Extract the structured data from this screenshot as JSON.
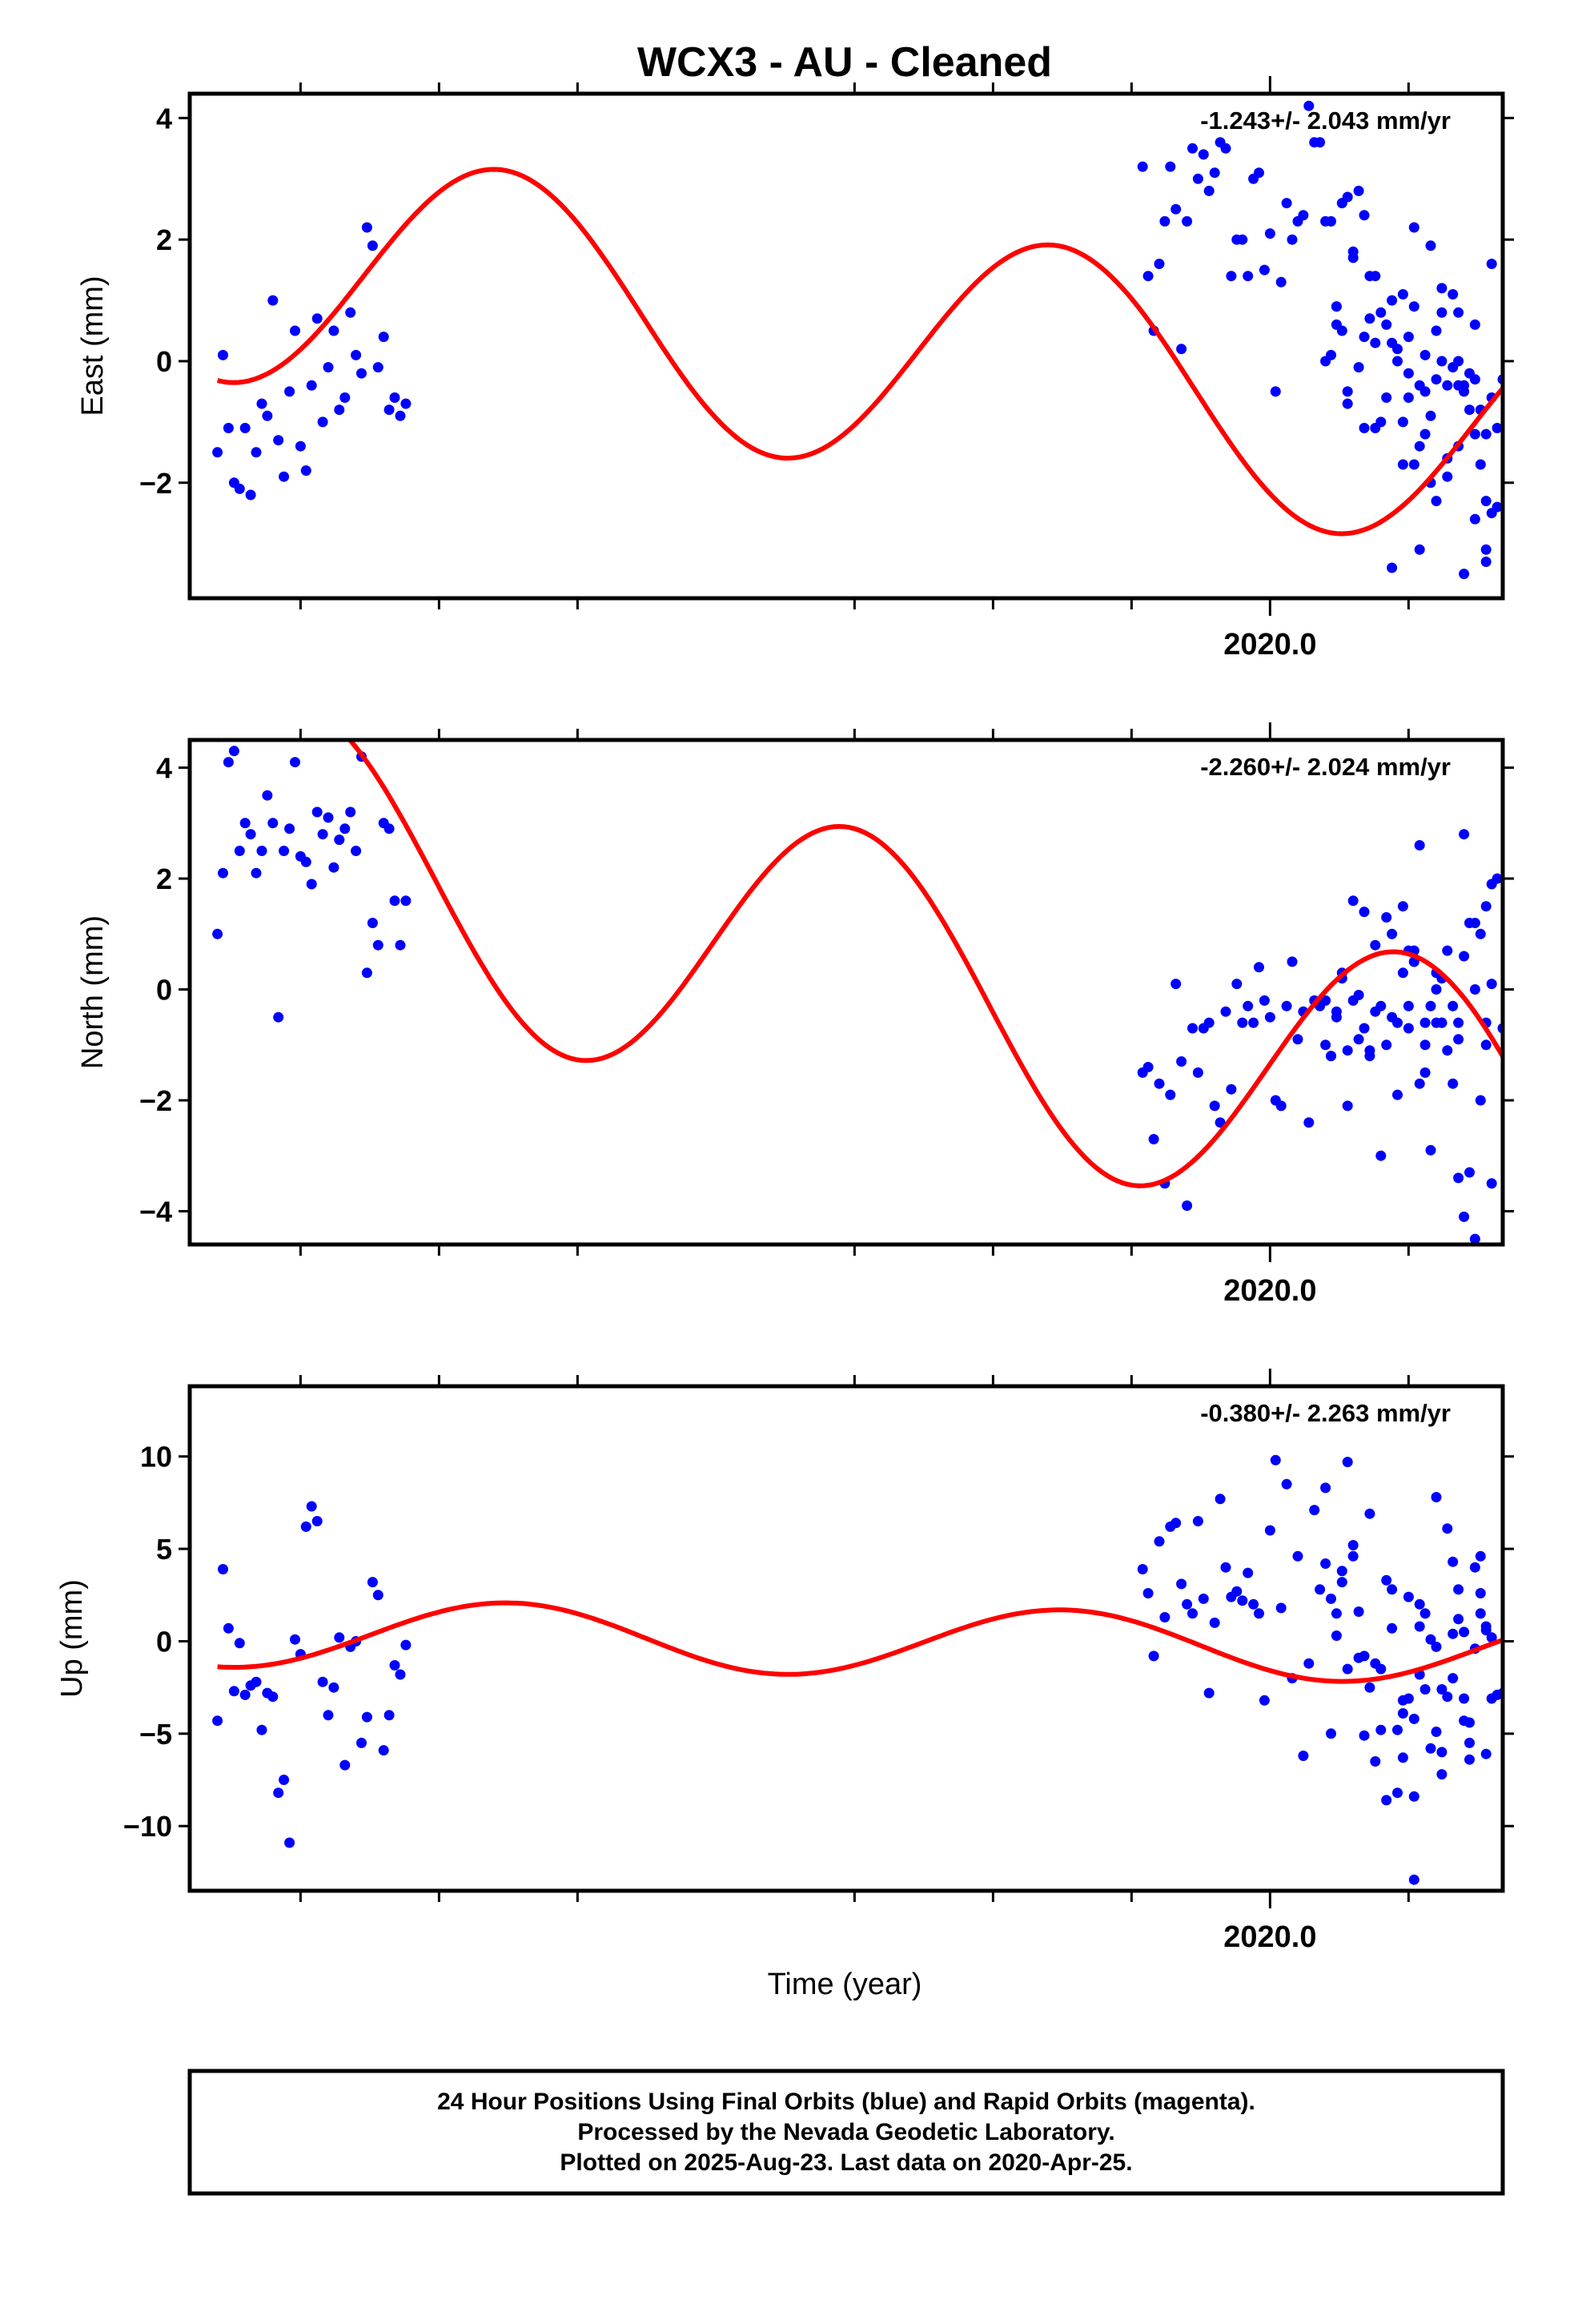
{
  "title": "WCX3  - AU - Cleaned",
  "x_axis_label": "Time (year)",
  "footer": {
    "line1": "24 Hour Positions Using Final Orbits (blue) and Rapid Orbits (magenta).",
    "line2": "Processed by the Nevada Geodetic Laboratory.",
    "line3": "Plotted on 2025-Aug-23. Last data on 2020-Apr-25."
  },
  "colors": {
    "points": "#0000ff",
    "fit": "#ff0000",
    "axes": "#000000"
  },
  "chart_data": [
    {
      "type": "scatter",
      "ylabel": "East (mm)",
      "rate": "-1.243+/- 2.043 mm/yr",
      "x_tick_label": "2020.0",
      "xlim": [
        2018.05,
        2020.42
      ],
      "ylim": [
        -3.9,
        4.4
      ],
      "yticks": [
        -2,
        0,
        2,
        4
      ],
      "grid": false,
      "series": [
        {
          "kind": "points",
          "x": [
            2018.1,
            2018.11,
            2018.12,
            2018.13,
            2018.14,
            2018.15,
            2018.16,
            2018.17,
            2018.18,
            2018.19,
            2018.2,
            2018.21,
            2018.22,
            2018.23,
            2018.24,
            2018.25,
            2018.26,
            2018.27,
            2018.28,
            2018.29,
            2018.3,
            2018.31,
            2018.32,
            2018.33,
            2018.34,
            2018.35,
            2018.36,
            2018.37,
            2018.38,
            2018.39,
            2018.4,
            2018.41,
            2018.42,
            2018.43,
            2018.44,
            2019.77,
            2019.78,
            2019.79,
            2019.8,
            2019.81,
            2019.82,
            2019.83,
            2019.84,
            2019.85,
            2019.86,
            2019.87,
            2019.88,
            2019.89,
            2019.9,
            2019.91,
            2019.92,
            2019.93,
            2019.94,
            2019.95,
            2019.96,
            2019.97,
            2019.98,
            2019.99,
            2020.0,
            2020.01,
            2020.02,
            2020.03,
            2020.04,
            2020.05,
            2020.06,
            2020.07,
            2020.08,
            2020.09,
            2020.1,
            2020.11,
            2020.12,
            2020.13,
            2020.14,
            2020.15,
            2020.16,
            2020.17,
            2020.18,
            2020.19,
            2020.2,
            2020.21,
            2020.22,
            2020.23,
            2020.24,
            2020.25,
            2020.26,
            2020.27,
            2020.28,
            2020.29,
            2020.3,
            2020.31,
            2020.32,
            2020.33,
            2020.34,
            2020.35,
            2020.36,
            2020.37,
            2020.38,
            2020.39,
            2020.4
          ],
          "y": [
            -1.5,
            0.1,
            -1.1,
            -2.0,
            -2.1,
            -1.1,
            -2.2,
            -1.5,
            -0.7,
            -0.9,
            1.0,
            -1.3,
            -1.9,
            -0.5,
            0.5,
            -1.4,
            -1.8,
            -0.4,
            0.7,
            -1.0,
            -0.1,
            0.5,
            -0.8,
            -0.6,
            0.8,
            0.1,
            -0.2,
            2.2,
            1.9,
            -0.1,
            0.4,
            -0.8,
            -0.6,
            -0.9,
            -0.7,
            3.2,
            1.4,
            0.5,
            1.6,
            2.3,
            3.2,
            2.5,
            0.2,
            2.3,
            3.5,
            3.0,
            3.4,
            2.8,
            3.1,
            3.6,
            3.5,
            1.4,
            2.0,
            2.0,
            1.4,
            3.0,
            3.1,
            1.5,
            2.1,
            -0.5,
            1.3,
            2.6,
            2.0,
            2.3,
            2.4,
            4.2,
            3.6,
            3.6,
            2.3,
            2.3,
            0.9,
            2.6,
            2.7,
            1.8,
            2.8,
            2.4,
            1.4,
            1.4,
            0.8,
            0.6,
            0.3,
            0.0,
            1.1,
            -0.2,
            0.9,
            -1.4,
            0.1,
            1.9,
            -0.3,
            0.8,
            -0.4,
            1.1,
            0.8,
            -0.4,
            -0.2,
            0.6,
            -0.8,
            -3.1,
            1.6
          ],
          "x2": [
            2020.1,
            2020.13,
            2020.16,
            2020.19,
            2020.22,
            2020.25,
            2020.28,
            2020.31,
            2020.34,
            2020.37,
            2020.4,
            2020.12,
            2020.15,
            2020.18,
            2020.21,
            2020.24,
            2020.27,
            2020.3,
            2020.33,
            2020.36,
            2020.39,
            2020.11,
            2020.14,
            2020.17,
            2020.2,
            2020.23,
            2020.26,
            2020.29,
            2020.32,
            2020.35,
            2020.38,
            2020.41,
            2020.14,
            2020.19,
            2020.24,
            2020.29,
            2020.34,
            2020.39,
            2020.12,
            2020.17,
            2020.22,
            2020.27,
            2020.32,
            2020.37,
            2020.41
          ],
          "y2": [
            0.0,
            0.5,
            -0.1,
            0.3,
            1.0,
            0.4,
            -0.5,
            1.2,
            0.0,
            -0.3,
            -0.6,
            0.6,
            1.7,
            0.7,
            -0.6,
            -1.0,
            -0.4,
            0.5,
            -0.1,
            -0.8,
            -1.2,
            0.1,
            -0.7,
            0.4,
            -1.0,
            0.2,
            -1.7,
            -0.9,
            -1.6,
            -0.5,
            -1.7,
            -2.4,
            -0.5,
            -1.1,
            -1.7,
            -2.0,
            -1.4,
            -2.3,
            0.9,
            -1.1,
            -3.4,
            -3.1,
            -1.9,
            -2.6,
            -1.1
          ],
          "x3": [
            2020.25,
            2020.28,
            2020.31,
            2020.34,
            2020.37,
            2020.4,
            2020.42,
            2020.26,
            2020.3,
            2020.35,
            2020.39
          ],
          "y3": [
            -0.6,
            -1.2,
            0.0,
            -0.4,
            -1.2,
            -2.5,
            -0.3,
            2.2,
            -2.3,
            -3.5,
            -3.3
          ]
        },
        {
          "kind": "fit",
          "name": "",
          "offset": 0.3,
          "trend": -1.243,
          "t0": 2019.25,
          "amp_a": -1.35,
          "amp_b": 1.55
        }
      ]
    },
    {
      "type": "scatter",
      "ylabel": "North (mm)",
      "rate": "-2.260+/- 2.024 mm/yr",
      "x_tick_label": "2020.0",
      "xlim": [
        2018.05,
        2020.42
      ],
      "ylim": [
        -4.6,
        4.5
      ],
      "yticks": [
        -4,
        -2,
        0,
        2,
        4
      ],
      "grid": false,
      "series": [
        {
          "kind": "points",
          "x": [
            2018.1,
            2018.11,
            2018.12,
            2018.13,
            2018.14,
            2018.15,
            2018.16,
            2018.17,
            2018.18,
            2018.19,
            2018.2,
            2018.21,
            2018.22,
            2018.23,
            2018.24,
            2018.25,
            2018.26,
            2018.27,
            2018.28,
            2018.29,
            2018.3,
            2018.31,
            2018.32,
            2018.33,
            2018.34,
            2018.35,
            2018.36,
            2018.37,
            2018.38,
            2018.39,
            2018.4,
            2018.41,
            2018.42,
            2018.43,
            2018.44,
            2019.77,
            2019.78,
            2019.79,
            2019.8,
            2019.81,
            2019.82,
            2019.83,
            2019.84,
            2019.85,
            2019.86,
            2019.87,
            2019.88,
            2019.89,
            2019.9,
            2019.91,
            2019.92,
            2019.93,
            2019.94,
            2019.95,
            2019.96,
            2019.97,
            2019.98,
            2019.99,
            2020.0,
            2020.01,
            2020.02,
            2020.03,
            2020.04,
            2020.05,
            2020.06,
            2020.07,
            2020.08,
            2020.09,
            2020.1,
            2020.11,
            2020.12,
            2020.13,
            2020.14,
            2020.15,
            2020.16,
            2020.17,
            2020.18,
            2020.19,
            2020.2,
            2020.21,
            2020.22,
            2020.23,
            2020.24,
            2020.25,
            2020.26,
            2020.27,
            2020.28,
            2020.29,
            2020.3,
            2020.31,
            2020.32,
            2020.33,
            2020.34,
            2020.35,
            2020.36,
            2020.37,
            2020.38,
            2020.39,
            2020.4
          ],
          "y": [
            1.0,
            2.1,
            4.1,
            4.3,
            2.5,
            3.0,
            2.8,
            2.1,
            2.5,
            3.5,
            3.0,
            -0.5,
            2.5,
            2.9,
            4.1,
            2.4,
            2.3,
            1.9,
            3.2,
            2.8,
            3.1,
            2.2,
            2.7,
            2.9,
            3.2,
            2.5,
            4.2,
            0.3,
            1.2,
            0.8,
            3.0,
            2.9,
            1.6,
            0.8,
            1.6,
            -1.5,
            -1.4,
            -2.7,
            -1.7,
            -3.5,
            -1.9,
            0.1,
            -1.3,
            -3.9,
            -0.7,
            -1.5,
            -0.7,
            -0.6,
            -2.1,
            -2.4,
            -0.4,
            -1.8,
            0.1,
            -0.6,
            -0.3,
            -0.6,
            0.4,
            -0.2,
            -0.5,
            -2.0,
            -2.1,
            -0.3,
            0.5,
            -0.9,
            -0.4,
            -2.4,
            -0.2,
            -0.3,
            -0.2,
            -1.2,
            -0.5,
            0.2,
            -1.1,
            -0.2,
            -0.1,
            -0.7,
            -1.1,
            -0.4,
            -3.0,
            -1.0,
            1.0,
            -1.9,
            1.5,
            -0.7,
            0.5,
            -1.7,
            -0.6,
            -2.9,
            0.3,
            -0.6,
            0.7,
            -0.3,
            -3.4,
            -4.1,
            -3.3,
            -4.5,
            -2.0,
            -1.0,
            -3.5
          ],
          "x2": [
            2020.1,
            2020.13,
            2020.16,
            2020.19,
            2020.22,
            2020.25,
            2020.28,
            2020.31,
            2020.34,
            2020.37,
            2020.4,
            2020.12,
            2020.15,
            2020.18,
            2020.21,
            2020.24,
            2020.27,
            2020.3,
            2020.33,
            2020.36,
            2020.39,
            2020.11,
            2020.14,
            2020.17,
            2020.2,
            2020.23,
            2020.26,
            2020.29,
            2020.32,
            2020.35,
            2020.38,
            2020.41
          ],
          "y2": [
            -1.0,
            0.3,
            -0.9,
            0.8,
            -0.5,
            0.7,
            -1.0,
            0.2,
            -0.6,
            1.2,
            1.9,
            -0.4,
            1.6,
            -1.2,
            1.3,
            0.3,
            2.6,
            0.0,
            -1.7,
            1.2,
            1.5,
            -1.2,
            -2.1,
            1.4,
            -0.3,
            -0.6,
            0.7,
            -0.3,
            -1.1,
            0.6,
            1.0,
            2.0
          ],
          "x3": [
            2020.25,
            2020.28,
            2020.31,
            2020.34,
            2020.37,
            2020.4,
            2020.42,
            2020.26,
            2020.3,
            2020.35,
            2020.39
          ],
          "y3": [
            -0.3,
            -1.5,
            -0.6,
            -0.9,
            0.0,
            0.1,
            -0.7,
            0.5,
            -0.6,
            2.8,
            -0.6
          ]
        },
        {
          "kind": "fit",
          "name": "",
          "offset": 0.25,
          "trend": -2.26,
          "t0": 2019.25,
          "amp_a": 2.65,
          "amp_b": -0.1
        }
      ]
    },
    {
      "type": "scatter",
      "ylabel": "Up (mm)",
      "rate": "-0.380+/- 2.263 mm/yr",
      "x_tick_label": "2020.0",
      "xlim": [
        2018.05,
        2020.42
      ],
      "ylim": [
        -13.5,
        13.8
      ],
      "yticks": [
        -10,
        -5,
        0,
        5,
        10
      ],
      "grid": false,
      "series": [
        {
          "kind": "points",
          "x": [
            2018.1,
            2018.11,
            2018.12,
            2018.13,
            2018.14,
            2018.15,
            2018.16,
            2018.17,
            2018.18,
            2018.19,
            2018.2,
            2018.21,
            2018.22,
            2018.23,
            2018.24,
            2018.25,
            2018.26,
            2018.27,
            2018.28,
            2018.29,
            2018.3,
            2018.31,
            2018.32,
            2018.33,
            2018.34,
            2018.35,
            2018.36,
            2018.37,
            2018.38,
            2018.39,
            2018.4,
            2018.41,
            2018.42,
            2018.43,
            2018.44,
            2019.77,
            2019.78,
            2019.79,
            2019.8,
            2019.81,
            2019.82,
            2019.83,
            2019.84,
            2019.85,
            2019.86,
            2019.87,
            2019.88,
            2019.89,
            2019.9,
            2019.91,
            2019.92,
            2019.93,
            2019.94,
            2019.95,
            2019.96,
            2019.97,
            2019.98,
            2019.99,
            2020.0,
            2020.01,
            2020.02,
            2020.03,
            2020.04,
            2020.05,
            2020.06,
            2020.07,
            2020.08,
            2020.09,
            2020.1,
            2020.11,
            2020.12,
            2020.13,
            2020.14,
            2020.15,
            2020.16,
            2020.17,
            2020.18,
            2020.19,
            2020.2,
            2020.21,
            2020.22,
            2020.23,
            2020.24,
            2020.25,
            2020.26,
            2020.27,
            2020.28,
            2020.29,
            2020.3,
            2020.31,
            2020.32,
            2020.33,
            2020.34,
            2020.35,
            2020.36,
            2020.37,
            2020.38,
            2020.39,
            2020.4
          ],
          "y": [
            -4.3,
            3.9,
            0.7,
            -2.7,
            -0.1,
            -2.9,
            -2.4,
            -2.2,
            -4.8,
            -2.8,
            -3.0,
            -8.2,
            -7.5,
            -10.9,
            0.1,
            -0.7,
            6.2,
            7.3,
            6.5,
            -2.2,
            -4.0,
            -2.5,
            0.2,
            -6.7,
            -0.3,
            0.0,
            -5.5,
            -4.1,
            3.2,
            2.5,
            -5.9,
            -4.0,
            -1.3,
            -1.8,
            -0.2,
            3.9,
            2.6,
            -0.8,
            5.4,
            1.3,
            6.2,
            6.4,
            3.1,
            2.0,
            1.5,
            6.5,
            2.3,
            -2.8,
            1.0,
            7.7,
            4.0,
            2.4,
            2.7,
            2.2,
            3.7,
            2.0,
            1.5,
            -3.2,
            6.0,
            9.8,
            1.8,
            8.5,
            -2.0,
            4.6,
            -6.2,
            -1.2,
            7.1,
            2.8,
            8.3,
            -5.0,
            0.3,
            3.2,
            9.7,
            5.2,
            1.6,
            -0.8,
            6.9,
            -1.2,
            -4.8,
            3.3,
            2.8,
            -4.8,
            -6.3,
            2.4,
            -12.9,
            2.0,
            1.5,
            -5.8,
            7.8,
            -7.2,
            6.1,
            4.3,
            1.2,
            0.5,
            -6.4,
            -0.4,
            2.6,
            0.8,
            -3.1
          ],
          "x2": [
            2020.1,
            2020.13,
            2020.16,
            2020.19,
            2020.22,
            2020.25,
            2020.28,
            2020.31,
            2020.34,
            2020.37,
            2020.4,
            2020.12,
            2020.15,
            2020.18,
            2020.21,
            2020.24,
            2020.27,
            2020.3,
            2020.33,
            2020.36,
            2020.39,
            2020.11,
            2020.14,
            2020.17,
            2020.2,
            2020.23,
            2020.26,
            2020.29,
            2020.32,
            2020.35,
            2020.38,
            2020.41
          ],
          "y2": [
            4.2,
            3.8,
            -0.9,
            -6.5,
            0.7,
            -3.1,
            -2.6,
            -6.0,
            2.8,
            4.0,
            0.2,
            1.5,
            4.6,
            -2.5,
            -8.6,
            -3.9,
            0.8,
            -4.9,
            -2.0,
            -4.4,
            0.6,
            2.3,
            -1.5,
            -5.1,
            -1.5,
            -8.2,
            -4.2,
            0.1,
            -3.0,
            -3.1,
            1.5,
            -2.9
          ],
          "x3": [
            2020.24,
            2020.27,
            2020.3,
            2020.33,
            2020.36,
            2020.39,
            2020.42,
            2020.26,
            2020.31,
            2020.35,
            2020.38
          ],
          "y3": [
            -3.2,
            -1.8,
            -0.3,
            0.4,
            -5.5,
            -6.1,
            -2.8,
            -8.4,
            -2.6,
            -4.3,
            4.6
          ]
        },
        {
          "kind": "fit",
          "name": "",
          "offset": 0.0,
          "trend": -0.38,
          "t0": 2019.25,
          "amp_a": -1.3,
          "amp_b": 1.3
        }
      ]
    }
  ]
}
